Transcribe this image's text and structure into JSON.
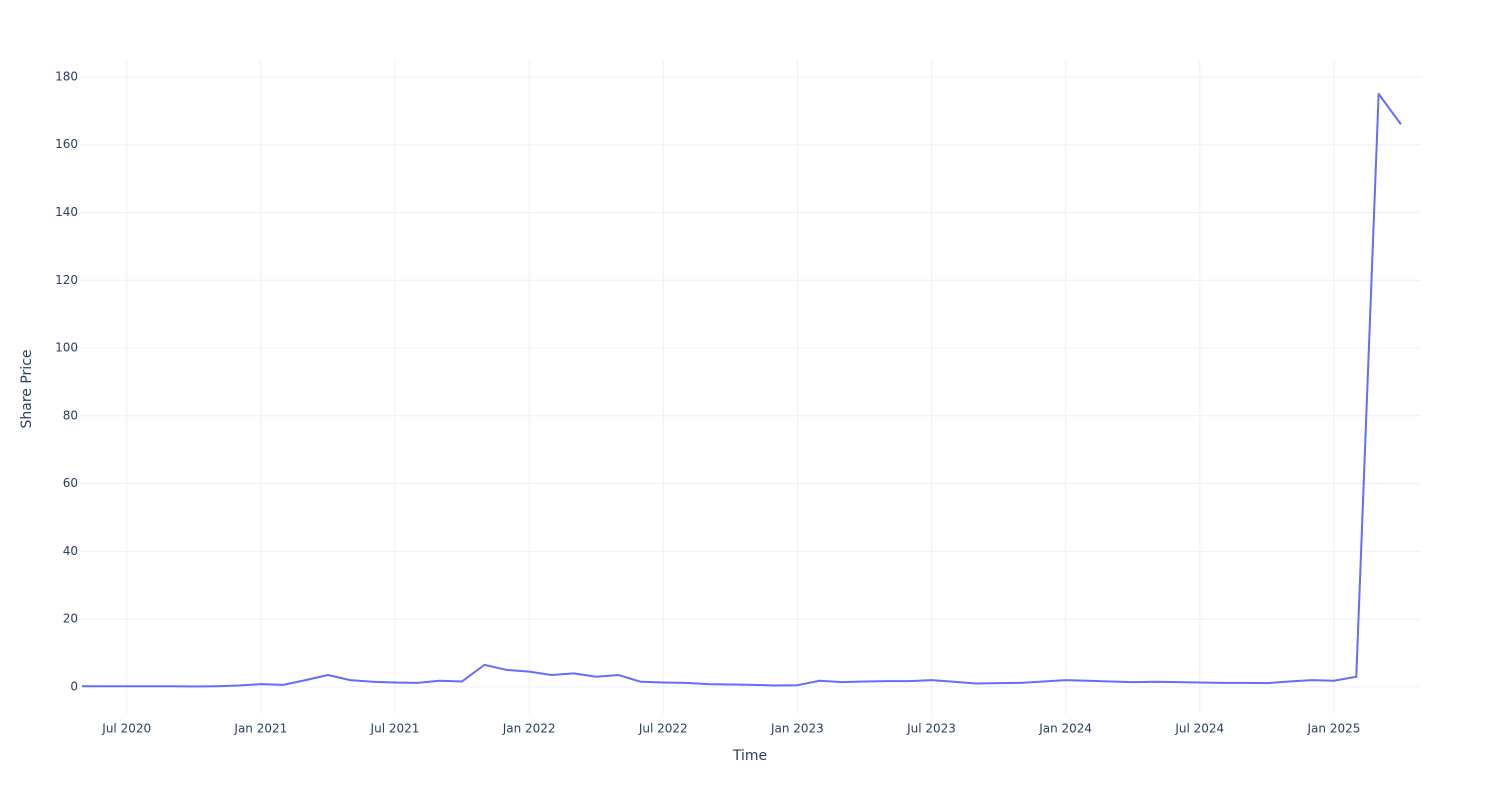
{
  "chart_data": {
    "type": "line",
    "x_label": "Time",
    "y_label": "Share Price",
    "x": [
      "2020-05",
      "2020-06",
      "2020-07",
      "2020-08",
      "2020-09",
      "2020-10",
      "2020-11",
      "2020-12",
      "2021-01",
      "2021-02",
      "2021-03",
      "2021-04",
      "2021-05",
      "2021-06",
      "2021-07",
      "2021-08",
      "2021-09",
      "2021-10",
      "2021-11",
      "2021-12",
      "2022-01",
      "2022-02",
      "2022-03",
      "2022-04",
      "2022-05",
      "2022-06",
      "2022-07",
      "2022-08",
      "2022-09",
      "2022-10",
      "2022-11",
      "2022-12",
      "2023-01",
      "2023-02",
      "2023-03",
      "2023-04",
      "2023-05",
      "2023-06",
      "2023-07",
      "2023-08",
      "2023-09",
      "2023-10",
      "2023-11",
      "2023-12",
      "2024-01",
      "2024-02",
      "2024-03",
      "2024-04",
      "2024-05",
      "2024-06",
      "2024-07",
      "2024-08",
      "2024-09",
      "2024-10",
      "2024-11",
      "2024-12",
      "2025-01",
      "2025-02",
      "2025-03",
      "2025-04"
    ],
    "series": [
      {
        "color": "#636efa",
        "values": [
          0.2,
          0.2,
          0.2,
          0.2,
          0.2,
          0.1,
          0.2,
          0.4,
          0.8,
          0.6,
          2,
          3.5,
          2,
          1.5,
          1.3,
          1.2,
          1.8,
          1.6,
          6.5,
          5,
          4.5,
          3.5,
          4,
          3,
          3.5,
          1.5,
          1.3,
          1.2,
          0.8,
          0.7,
          0.6,
          0.4,
          0.5,
          1.8,
          1.4,
          1.6,
          1.7,
          1.7,
          2.0,
          1.5,
          1.0,
          1.1,
          1.2,
          1.6,
          2.0,
          1.8,
          1.6,
          1.4,
          1.5,
          1.4,
          1.3,
          1.2,
          1.2,
          1.1,
          1.6,
          2.0,
          1.8,
          3.0,
          175,
          166
        ]
      }
    ],
    "xlim": [
      "2020-05",
      "2025-04"
    ],
    "xticks": [
      {
        "value": "2020-07",
        "label": "Jul 2020"
      },
      {
        "value": "2021-01",
        "label": "Jan 2021"
      },
      {
        "value": "2021-07",
        "label": "Jul 2021"
      },
      {
        "value": "2022-01",
        "label": "Jan 2022"
      },
      {
        "value": "2022-07",
        "label": "Jul 2022"
      },
      {
        "value": "2023-01",
        "label": "Jan 2023"
      },
      {
        "value": "2023-07",
        "label": "Jul 2023"
      },
      {
        "value": "2024-01",
        "label": "Jan 2024"
      },
      {
        "value": "2024-07",
        "label": "Jul 2024"
      },
      {
        "value": "2025-01",
        "label": "Jan 2025"
      }
    ],
    "ylim": [
      -8,
      185
    ],
    "yticks": [
      0,
      20,
      40,
      60,
      80,
      100,
      120,
      140,
      160,
      180
    ],
    "grid": true
  }
}
